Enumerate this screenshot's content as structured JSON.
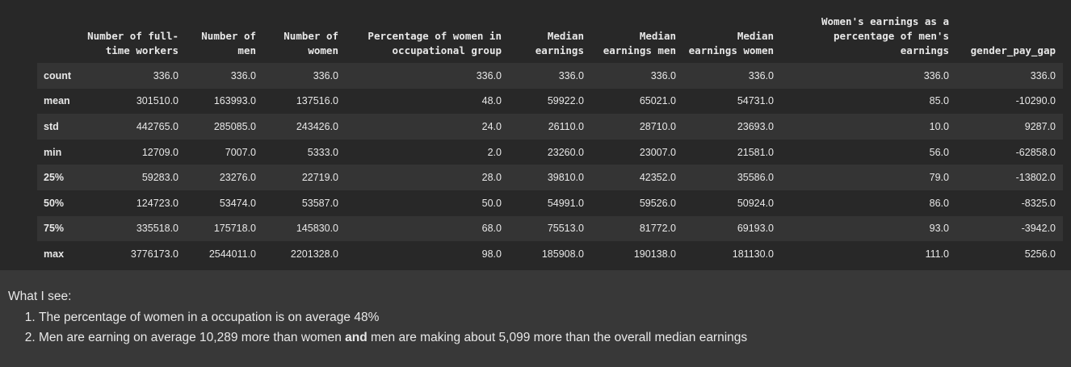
{
  "table": {
    "columns": [
      "Number of full-time workers",
      "Number of men",
      "Number of women",
      "Percentage of women in occupational group",
      "Median earnings",
      "Median earnings men",
      "Median earnings women",
      "Women's earnings as a percentage of men's earnings",
      "gender_pay_gap"
    ],
    "rows": [
      {
        "label": "count",
        "values": [
          "336.0",
          "336.0",
          "336.0",
          "336.0",
          "336.0",
          "336.0",
          "336.0",
          "336.0",
          "336.0"
        ]
      },
      {
        "label": "mean",
        "values": [
          "301510.0",
          "163993.0",
          "137516.0",
          "48.0",
          "59922.0",
          "65021.0",
          "54731.0",
          "85.0",
          "-10290.0"
        ]
      },
      {
        "label": "std",
        "values": [
          "442765.0",
          "285085.0",
          "243426.0",
          "24.0",
          "26110.0",
          "28710.0",
          "23693.0",
          "10.0",
          "9287.0"
        ]
      },
      {
        "label": "min",
        "values": [
          "12709.0",
          "7007.0",
          "5333.0",
          "2.0",
          "23260.0",
          "23007.0",
          "21581.0",
          "56.0",
          "-62858.0"
        ]
      },
      {
        "label": "25%",
        "values": [
          "59283.0",
          "23276.0",
          "22719.0",
          "28.0",
          "39810.0",
          "42352.0",
          "35586.0",
          "79.0",
          "-13802.0"
        ]
      },
      {
        "label": "50%",
        "values": [
          "124723.0",
          "53474.0",
          "53587.0",
          "50.0",
          "54991.0",
          "59526.0",
          "50924.0",
          "86.0",
          "-8325.0"
        ]
      },
      {
        "label": "75%",
        "values": [
          "335518.0",
          "175718.0",
          "145830.0",
          "68.0",
          "75513.0",
          "81772.0",
          "69193.0",
          "93.0",
          "-3942.0"
        ]
      },
      {
        "label": "max",
        "values": [
          "3776173.0",
          "2544011.0",
          "2201328.0",
          "98.0",
          "185908.0",
          "190138.0",
          "181130.0",
          "111.0",
          "5256.0"
        ]
      }
    ]
  },
  "notes": {
    "title": "What I see:",
    "item1": "The percentage of women in a occupation is on average 48%",
    "item2_before": "Men are earning on average 10,289 more than women ",
    "item2_bold": "and",
    "item2_after": " men are making about 5,099 more than the overall median earnings"
  }
}
